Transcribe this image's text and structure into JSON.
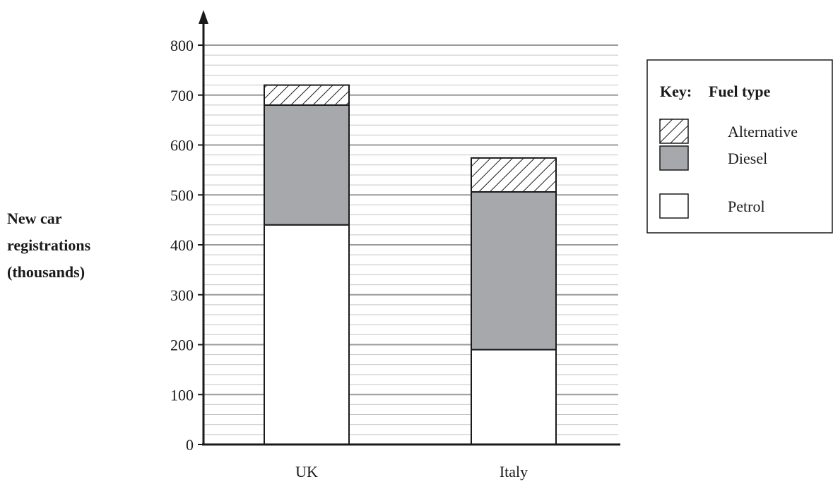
{
  "chart_data": {
    "type": "bar",
    "stacked": true,
    "categories": [
      "UK",
      "Italy"
    ],
    "series": [
      {
        "name": "Petrol",
        "values": [
          440,
          190
        ],
        "color": "#ffffff",
        "pattern": "none"
      },
      {
        "name": "Diesel",
        "values": [
          240,
          316
        ],
        "color": "#a6a8ab",
        "pattern": "none"
      },
      {
        "name": "Alternative",
        "values": [
          40,
          68
        ],
        "color": "#ffffff",
        "pattern": "hatch"
      }
    ],
    "ylabel": [
      "New car",
      "registrations",
      "(thousands)"
    ],
    "ylim": [
      0,
      800
    ],
    "yticks": [
      0,
      100,
      200,
      300,
      400,
      500,
      600,
      700,
      800
    ],
    "minor_grid_step": 20,
    "grid": true,
    "legend": {
      "placement": "top-right",
      "key_label": "Key:",
      "title": "Fuel type",
      "order": [
        "Alternative",
        "Diesel",
        "Petrol"
      ]
    }
  }
}
